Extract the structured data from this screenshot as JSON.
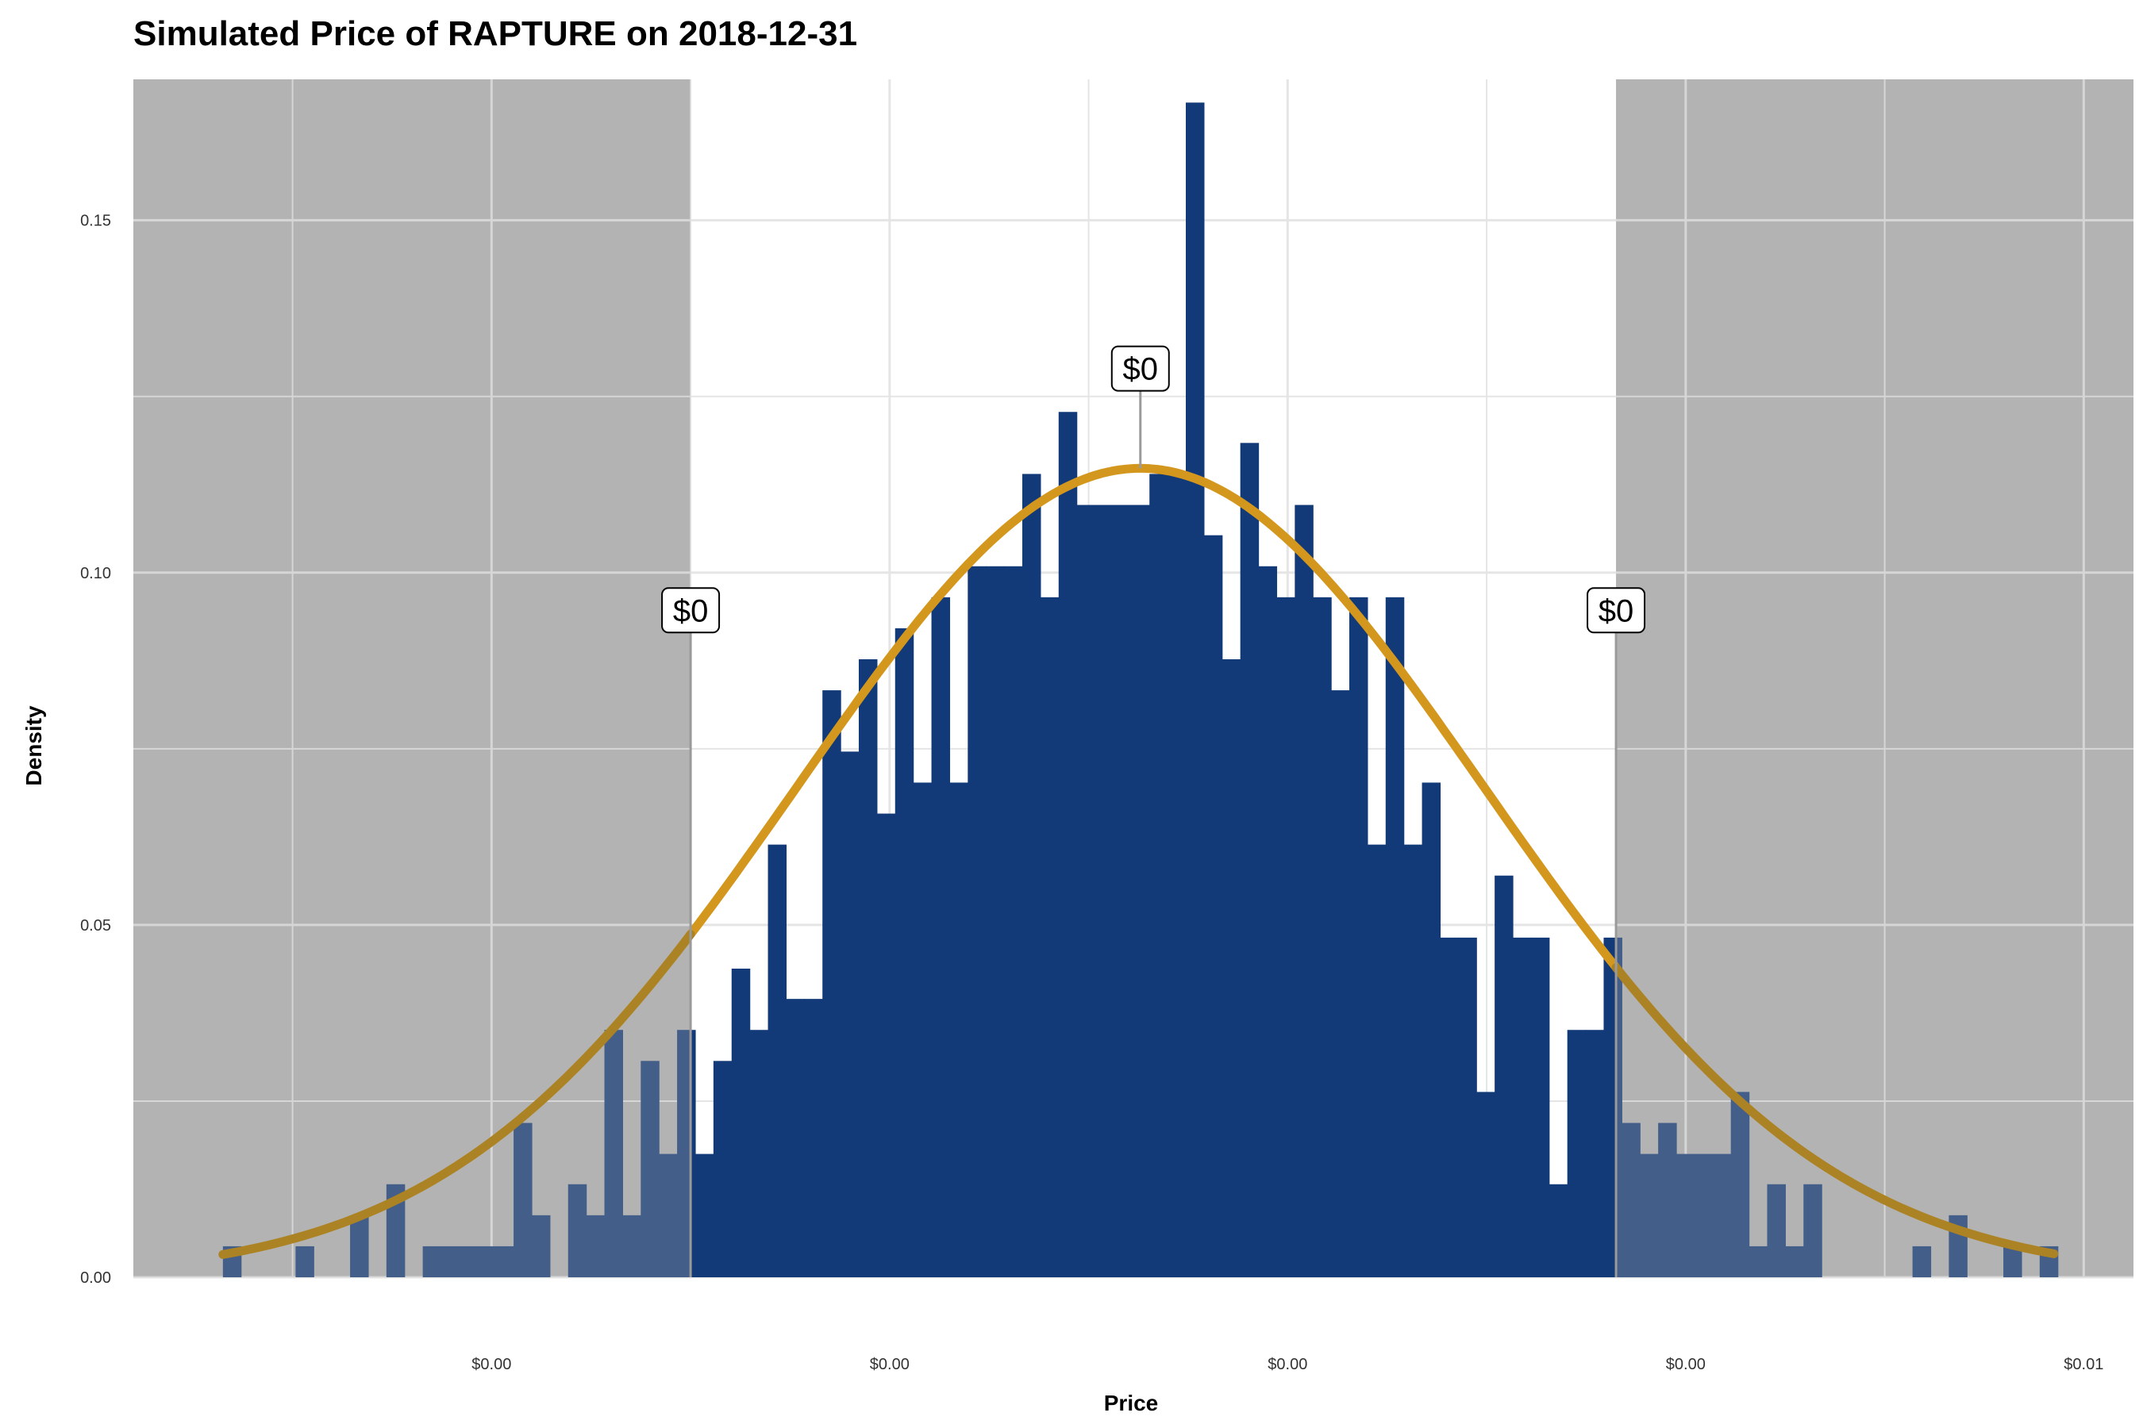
{
  "chart_data": {
    "type": "bar",
    "title": "Simulated Price of RAPTURE on 2018-12-31",
    "xlabel": "Price",
    "ylabel": "Density",
    "ylim": [
      0,
      0.17
    ],
    "y_ticks": [
      {
        "value": 0.0,
        "label": "0.00"
      },
      {
        "value": 0.05,
        "label": "0.05"
      },
      {
        "value": 0.1,
        "label": "0.10"
      },
      {
        "value": 0.15,
        "label": "0.15"
      }
    ],
    "xlim": [
      -0.8,
      9.25
    ],
    "x_ticks": [
      {
        "value": 1,
        "label": "$0.00"
      },
      {
        "value": 3,
        "label": "$0.00"
      },
      {
        "value": 5,
        "label": "$0.00"
      },
      {
        "value": 7,
        "label": "$0.00"
      },
      {
        "value": 9,
        "label": "$0.01"
      }
    ],
    "grid": true,
    "bin_range": [
      -0.35,
      8.87
    ],
    "bars": [
      0.0044,
      0,
      0,
      0,
      0.0044,
      0,
      0,
      0.0088,
      0,
      0.0132,
      0,
      0.0044,
      0.0044,
      0.0044,
      0.0044,
      0.0044,
      0.0219,
      0.0088,
      0,
      0.0132,
      0.0088,
      0.0351,
      0.0088,
      0.0307,
      0.0175,
      0.0351,
      0.0175,
      0.0307,
      0.0438,
      0.0351,
      0.0614,
      0.0395,
      0.0395,
      0.0833,
      0.0746,
      0.0877,
      0.0658,
      0.0921,
      0.0702,
      0.0965,
      0.0702,
      0.1009,
      0.1009,
      0.1009,
      0.114,
      0.0965,
      0.1228,
      0.1096,
      0.1096,
      0.1096,
      0.1096,
      0.114,
      0.114,
      0.1667,
      0.1053,
      0.0877,
      0.1184,
      0.1009,
      0.0965,
      0.1096,
      0.0965,
      0.0833,
      0.0965,
      0.0614,
      0.0965,
      0.0614,
      0.0702,
      0.0482,
      0.0482,
      0.0263,
      0.057,
      0.0482,
      0.0482,
      0.0132,
      0.0351,
      0.0351,
      0.0482,
      0.0219,
      0.0175,
      0.0219,
      0.0175,
      0.0175,
      0.0175,
      0.0263,
      0.0044,
      0.0132,
      0.0044,
      0.0132,
      0,
      0,
      0,
      0,
      0,
      0.0044,
      0,
      0.0088,
      0,
      0,
      0.0044,
      0,
      0.0044
    ],
    "density_curve": {
      "mean": 4.26,
      "sd": 1.725,
      "peak": 0.1148,
      "x_start": -0.35,
      "x_end": 8.85,
      "color": "#D4971E"
    },
    "interval": {
      "lower": 2.0,
      "upper": 6.65
    },
    "annotations": [
      {
        "name": "lower",
        "x": 2.0,
        "y": 0.0915,
        "label": "$0"
      },
      {
        "name": "median",
        "x": 4.26,
        "y": 0.1258,
        "label": "$0"
      },
      {
        "name": "upper",
        "x": 6.65,
        "y": 0.0915,
        "label": "$0"
      }
    ],
    "colors": {
      "bar": "#123A78",
      "shade": "#B3B3B3",
      "curve": "#D4971E"
    }
  }
}
